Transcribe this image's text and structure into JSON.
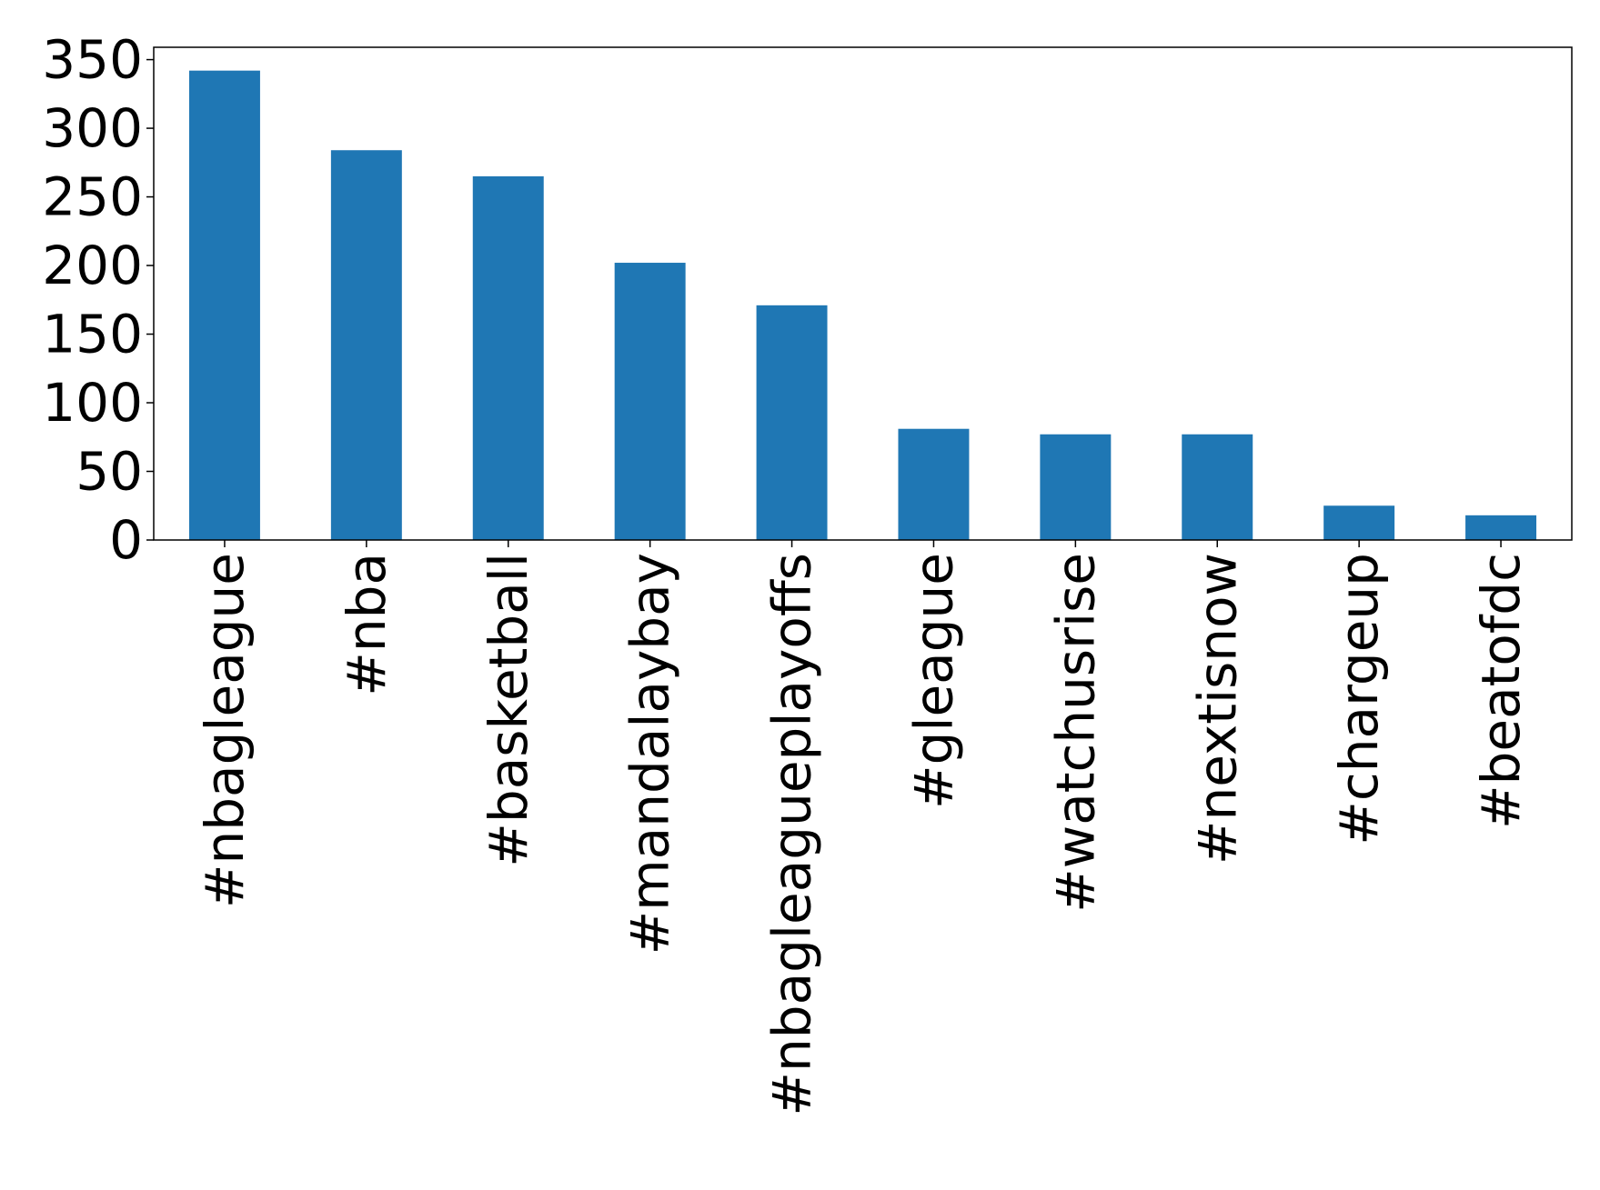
{
  "chart_data": {
    "type": "bar",
    "categories": [
      "#nbagleague",
      "#nba",
      "#basketball",
      "#mandalaybay",
      "#nbagleagueplayoffs",
      "#gleague",
      "#watchusrise",
      "#nextisnow",
      "#chargeup",
      "#beatofdc"
    ],
    "values": [
      342,
      284,
      265,
      202,
      171,
      81,
      77,
      77,
      25,
      18
    ],
    "color": "#1f77b4",
    "ylim": [
      0,
      359
    ],
    "yticks": [
      0,
      50,
      100,
      150,
      200,
      250,
      300,
      350
    ],
    "grid": false
  }
}
